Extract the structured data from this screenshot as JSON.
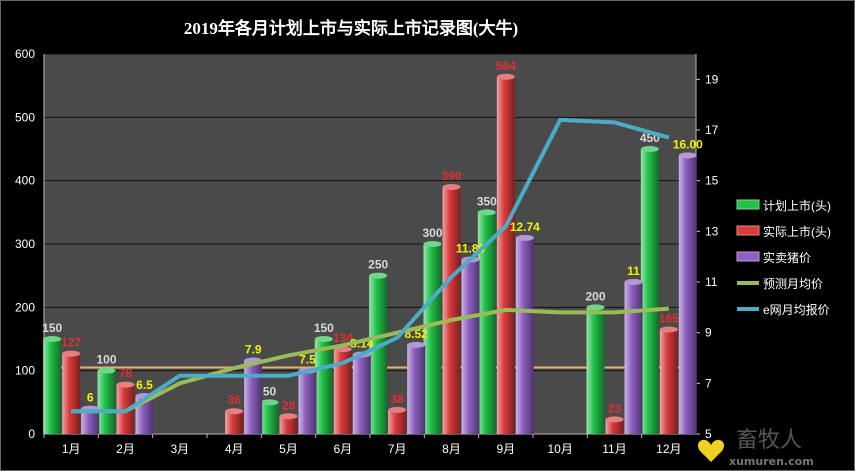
{
  "chart_data": {
    "type": "bar",
    "title": "2019年各月计划上市与实际上市记录图(大牛)",
    "categories": [
      "1月",
      "2月",
      "3月",
      "4月",
      "5月",
      "6月",
      "7月",
      "8月",
      "9月",
      "10月",
      "11月",
      "12月"
    ],
    "ylim": [
      0,
      600
    ],
    "yticks": [
      0,
      100,
      200,
      300,
      400,
      500,
      600
    ],
    "y2lim": [
      5,
      20
    ],
    "y2ticks": [
      5,
      7,
      9,
      11,
      13,
      15,
      17,
      19
    ],
    "reference_line_value": 105,
    "series": [
      {
        "name": "计划上市(头)",
        "axis": "left",
        "kind": "bar",
        "color": "#22c24a",
        "values": [
          150,
          100,
          null,
          null,
          50,
          150,
          250,
          300,
          350,
          null,
          200,
          450
        ],
        "labels": [
          "150",
          "100",
          "",
          "",
          "50",
          "150",
          "250",
          "300",
          "350",
          "",
          "200",
          "450"
        ]
      },
      {
        "name": "实际上市(头)",
        "axis": "left",
        "kind": "bar",
        "color": "#d93a3a",
        "values": [
          127,
          78,
          null,
          36,
          28,
          134,
          38,
          390,
          564,
          null,
          23,
          165
        ],
        "labels": [
          "127",
          "78",
          "",
          "36",
          "28",
          "134",
          "38",
          "390",
          "564",
          "",
          "23",
          "165"
        ]
      },
      {
        "name": "实卖猪价",
        "axis": "right",
        "kind": "bar",
        "color": "#8c5fc0",
        "values": [
          6,
          6.5,
          null,
          7.9,
          7.5,
          8.14,
          8.52,
          11.89,
          12.74,
          null,
          11,
          16
        ],
        "labels": [
          "6",
          "6.5",
          "",
          "7.9",
          "7.5",
          "8.14",
          "8.52",
          "11.89",
          "12.74",
          "",
          "11",
          "16.00"
        ]
      },
      {
        "name": "预测月均价",
        "axis": "right",
        "kind": "line",
        "color": "#9bbb59",
        "values": [
          5.9,
          5.9,
          7.0,
          7.6,
          8.1,
          8.5,
          9.0,
          9.5,
          9.9,
          9.8,
          9.8,
          9.95
        ]
      },
      {
        "name": "e网月均报价",
        "axis": "right",
        "kind": "line",
        "color": "#4bacc6",
        "values": [
          5.9,
          5.9,
          7.3,
          7.3,
          7.3,
          7.8,
          8.8,
          11.2,
          13.2,
          17.4,
          17.3,
          16.7
        ]
      }
    ],
    "grid": true,
    "legend_position": "right"
  },
  "watermark": {
    "chars": "畜牧人",
    "url": "xumuren.com"
  }
}
